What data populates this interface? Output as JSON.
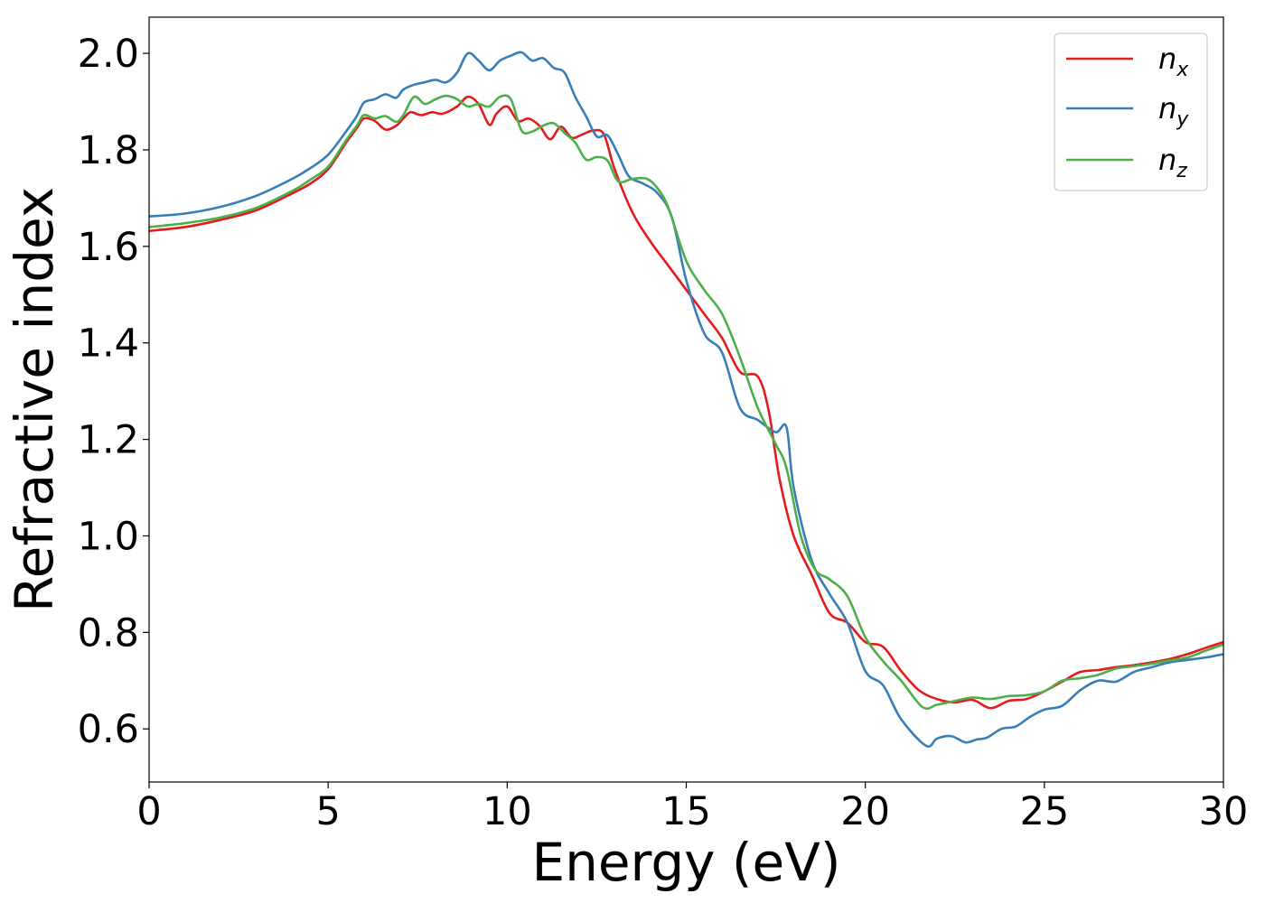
{
  "chart_data": {
    "type": "line",
    "title": "",
    "xlabel": "Energy (eV)",
    "ylabel": "Refractive index",
    "xlim": [
      0,
      30
    ],
    "ylim": [
      0.49,
      2.075
    ],
    "xticks": [
      0,
      5,
      10,
      15,
      20,
      25,
      30
    ],
    "xtick_labels": [
      "0",
      "5",
      "10",
      "15",
      "20",
      "25",
      "30"
    ],
    "yticks": [
      0.6,
      0.8,
      1.0,
      1.2,
      1.4,
      1.6,
      1.8,
      2.0
    ],
    "ytick_labels": [
      "0.6",
      "0.8",
      "1.0",
      "1.2",
      "1.4",
      "1.6",
      "1.8",
      "2.0"
    ],
    "grid": false,
    "legend_position": "top-right",
    "series": [
      {
        "name": "n_x",
        "legend_base": "n",
        "legend_sub": "x",
        "color": "#e41a1c",
        "x": [
          0,
          1,
          2,
          3,
          4,
          4.5,
          5,
          5.5,
          5.8,
          6.0,
          6.3,
          6.6,
          6.9,
          7.1,
          7.3,
          7.6,
          7.9,
          8.2,
          8.6,
          8.9,
          9.2,
          9.5,
          9.7,
          10.0,
          10.3,
          10.6,
          10.9,
          11.2,
          11.5,
          11.8,
          12.1,
          12.4,
          12.7,
          13.0,
          13.5,
          14.0,
          14.5,
          15.0,
          15.5,
          16.0,
          16.5,
          17.0,
          17.3,
          17.6,
          18.0,
          18.5,
          19.0,
          19.5,
          20.0,
          20.5,
          21.0,
          21.5,
          22.0,
          22.5,
          23.0,
          23.5,
          24.0,
          24.5,
          25.0,
          25.5,
          26.0,
          26.5,
          27.0,
          27.5,
          28.0,
          28.5,
          29.0,
          29.5,
          30.0
        ],
        "y": [
          1.632,
          1.64,
          1.655,
          1.675,
          1.71,
          1.73,
          1.76,
          1.815,
          1.845,
          1.865,
          1.86,
          1.842,
          1.85,
          1.865,
          1.878,
          1.872,
          1.878,
          1.875,
          1.89,
          1.91,
          1.895,
          1.852,
          1.875,
          1.89,
          1.86,
          1.865,
          1.85,
          1.822,
          1.848,
          1.825,
          1.832,
          1.84,
          1.832,
          1.76,
          1.67,
          1.61,
          1.56,
          1.51,
          1.46,
          1.41,
          1.34,
          1.33,
          1.26,
          1.12,
          1.0,
          0.92,
          0.84,
          0.82,
          0.78,
          0.77,
          0.72,
          0.68,
          0.662,
          0.655,
          0.66,
          0.643,
          0.658,
          0.662,
          0.678,
          0.698,
          0.718,
          0.722,
          0.728,
          0.732,
          0.738,
          0.745,
          0.755,
          0.768,
          0.78
        ]
      },
      {
        "name": "n_y",
        "legend_base": "n",
        "legend_sub": "y",
        "color": "#377eb8",
        "x": [
          0,
          1,
          2,
          3,
          4,
          4.5,
          5,
          5.5,
          5.8,
          6.0,
          6.3,
          6.6,
          6.9,
          7.1,
          7.4,
          7.7,
          8.0,
          8.3,
          8.6,
          8.9,
          9.2,
          9.5,
          9.8,
          10.1,
          10.4,
          10.7,
          11.0,
          11.3,
          11.6,
          11.9,
          12.2,
          12.5,
          12.8,
          13.1,
          13.4,
          13.8,
          14.2,
          14.6,
          15.0,
          15.5,
          16.0,
          16.5,
          17.0,
          17.5,
          17.8,
          18.0,
          18.5,
          19.0,
          19.5,
          20.0,
          20.5,
          21.0,
          21.7,
          22.0,
          22.4,
          22.8,
          23.1,
          23.4,
          23.8,
          24.2,
          24.6,
          25.0,
          25.5,
          26.0,
          26.5,
          27.0,
          27.5,
          28.0,
          28.5,
          29.0,
          29.5,
          30.0
        ],
        "y": [
          1.662,
          1.668,
          1.682,
          1.705,
          1.74,
          1.762,
          1.79,
          1.838,
          1.87,
          1.898,
          1.905,
          1.915,
          1.908,
          1.925,
          1.935,
          1.94,
          1.945,
          1.94,
          1.96,
          2.0,
          1.985,
          1.965,
          1.985,
          1.995,
          2.002,
          1.985,
          1.99,
          1.97,
          1.96,
          1.91,
          1.87,
          1.828,
          1.83,
          1.79,
          1.745,
          1.73,
          1.71,
          1.66,
          1.53,
          1.42,
          1.38,
          1.265,
          1.24,
          1.215,
          1.225,
          1.1,
          0.95,
          0.88,
          0.82,
          0.72,
          0.69,
          0.62,
          0.565,
          0.58,
          0.585,
          0.572,
          0.578,
          0.582,
          0.6,
          0.605,
          0.625,
          0.64,
          0.648,
          0.68,
          0.7,
          0.698,
          0.718,
          0.728,
          0.738,
          0.743,
          0.748,
          0.755
        ]
      },
      {
        "name": "n_z",
        "legend_base": "n",
        "legend_sub": "z",
        "color": "#4daf4a",
        "x": [
          0,
          1,
          2,
          3,
          4,
          4.5,
          5,
          5.5,
          5.8,
          6.0,
          6.3,
          6.6,
          6.9,
          7.1,
          7.4,
          7.7,
          8.0,
          8.3,
          8.6,
          8.9,
          9.2,
          9.5,
          9.8,
          10.1,
          10.4,
          10.7,
          11.0,
          11.3,
          11.6,
          11.9,
          12.2,
          12.5,
          12.8,
          13.1,
          13.5,
          13.9,
          14.2,
          14.5,
          15.0,
          15.5,
          16.0,
          16.5,
          17.0,
          17.5,
          17.8,
          18.2,
          18.6,
          19.0,
          19.5,
          20.0,
          20.5,
          21.0,
          21.6,
          22.0,
          22.5,
          23.0,
          23.5,
          24.0,
          24.5,
          25.0,
          25.5,
          26.0,
          26.5,
          27.0,
          27.5,
          28.0,
          28.5,
          29.0,
          29.5,
          30.0
        ],
        "y": [
          1.64,
          1.648,
          1.66,
          1.68,
          1.715,
          1.738,
          1.765,
          1.82,
          1.85,
          1.872,
          1.865,
          1.87,
          1.858,
          1.872,
          1.91,
          1.895,
          1.905,
          1.912,
          1.905,
          1.89,
          1.895,
          1.89,
          1.91,
          1.905,
          1.84,
          1.838,
          1.85,
          1.855,
          1.835,
          1.815,
          1.78,
          1.785,
          1.778,
          1.735,
          1.74,
          1.74,
          1.72,
          1.68,
          1.57,
          1.51,
          1.46,
          1.37,
          1.265,
          1.19,
          1.14,
          1.0,
          0.93,
          0.91,
          0.875,
          0.79,
          0.74,
          0.7,
          0.645,
          0.65,
          0.658,
          0.665,
          0.662,
          0.668,
          0.67,
          0.678,
          0.7,
          0.705,
          0.712,
          0.725,
          0.73,
          0.735,
          0.742,
          0.748,
          0.762,
          0.775
        ]
      }
    ]
  }
}
